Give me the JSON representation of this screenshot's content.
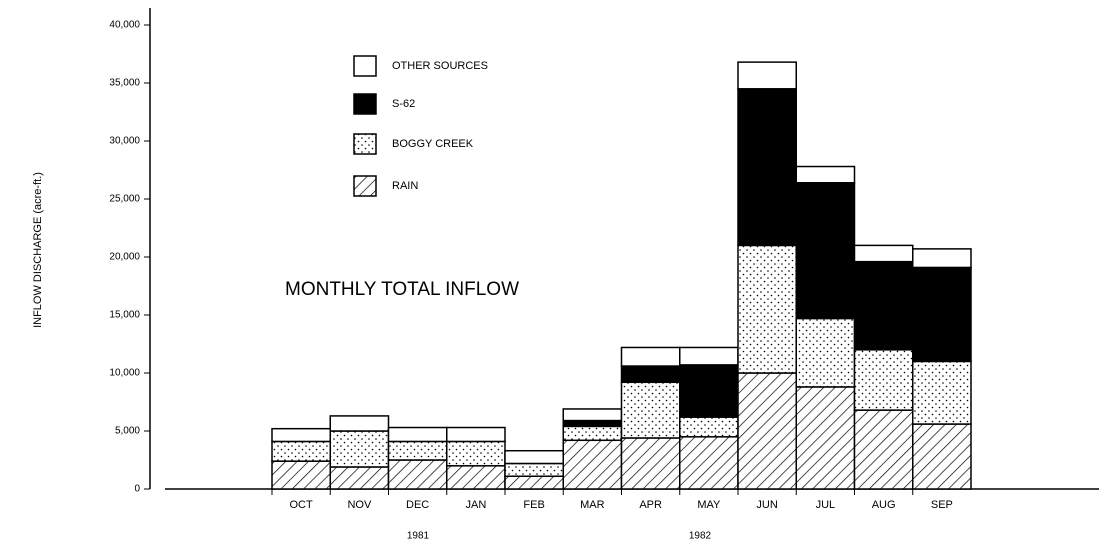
{
  "chart_data": {
    "type": "stacked-bar",
    "title": "MONTHLY TOTAL INFLOW",
    "y_label": "INFLOW DISCHARGE (acre-ft.)",
    "categories": [
      "OCT",
      "NOV",
      "DEC",
      "JAN",
      "FEB",
      "MAR",
      "APR",
      "MAY",
      "JUN",
      "JUL",
      "AUG",
      "SEP"
    ],
    "groups": [
      "1981",
      "1982"
    ],
    "series": [
      {
        "name": "RAIN",
        "color": "#000000",
        "pattern": "hatch",
        "values": [
          2400,
          1900,
          2500,
          2000,
          1100,
          4200,
          4400,
          4500,
          10000,
          8800,
          6800,
          5600
        ]
      },
      {
        "name": "BOGGY CREEK",
        "color": "#000000",
        "pattern": "dots",
        "values": [
          1700,
          3100,
          1600,
          2100,
          1100,
          1200,
          4800,
          1700,
          11000,
          5900,
          5200,
          5400
        ]
      },
      {
        "name": "S-62",
        "color": "#000000",
        "pattern": "solid",
        "values": [
          0,
          0,
          0,
          0,
          0,
          500,
          1400,
          4500,
          13500,
          11700,
          7600,
          8100
        ]
      },
      {
        "name": "OTHER SOURCES",
        "color": "#ffffff",
        "pattern": "none",
        "values": [
          1100,
          1300,
          1200,
          1200,
          1100,
          1000,
          1600,
          1500,
          2300,
          1400,
          1400,
          1600
        ]
      }
    ],
    "ylim": [
      0,
      40000
    ],
    "yticks": [
      0,
      {
        "value": 5000,
        "label": "5,000"
      },
      {
        "value": 10000,
        "label": "10,000"
      },
      {
        "value": 15000,
        "label": "15,000"
      },
      {
        "value": 20000,
        "label": "20,000"
      },
      {
        "value": 25000,
        "label": "25,000"
      },
      {
        "value": 30000,
        "label": "30,000"
      },
      {
        "value": 35000,
        "label": "35,000"
      },
      {
        "value": 40000,
        "label": "40,000"
      }
    ],
    "grid": false
  }
}
